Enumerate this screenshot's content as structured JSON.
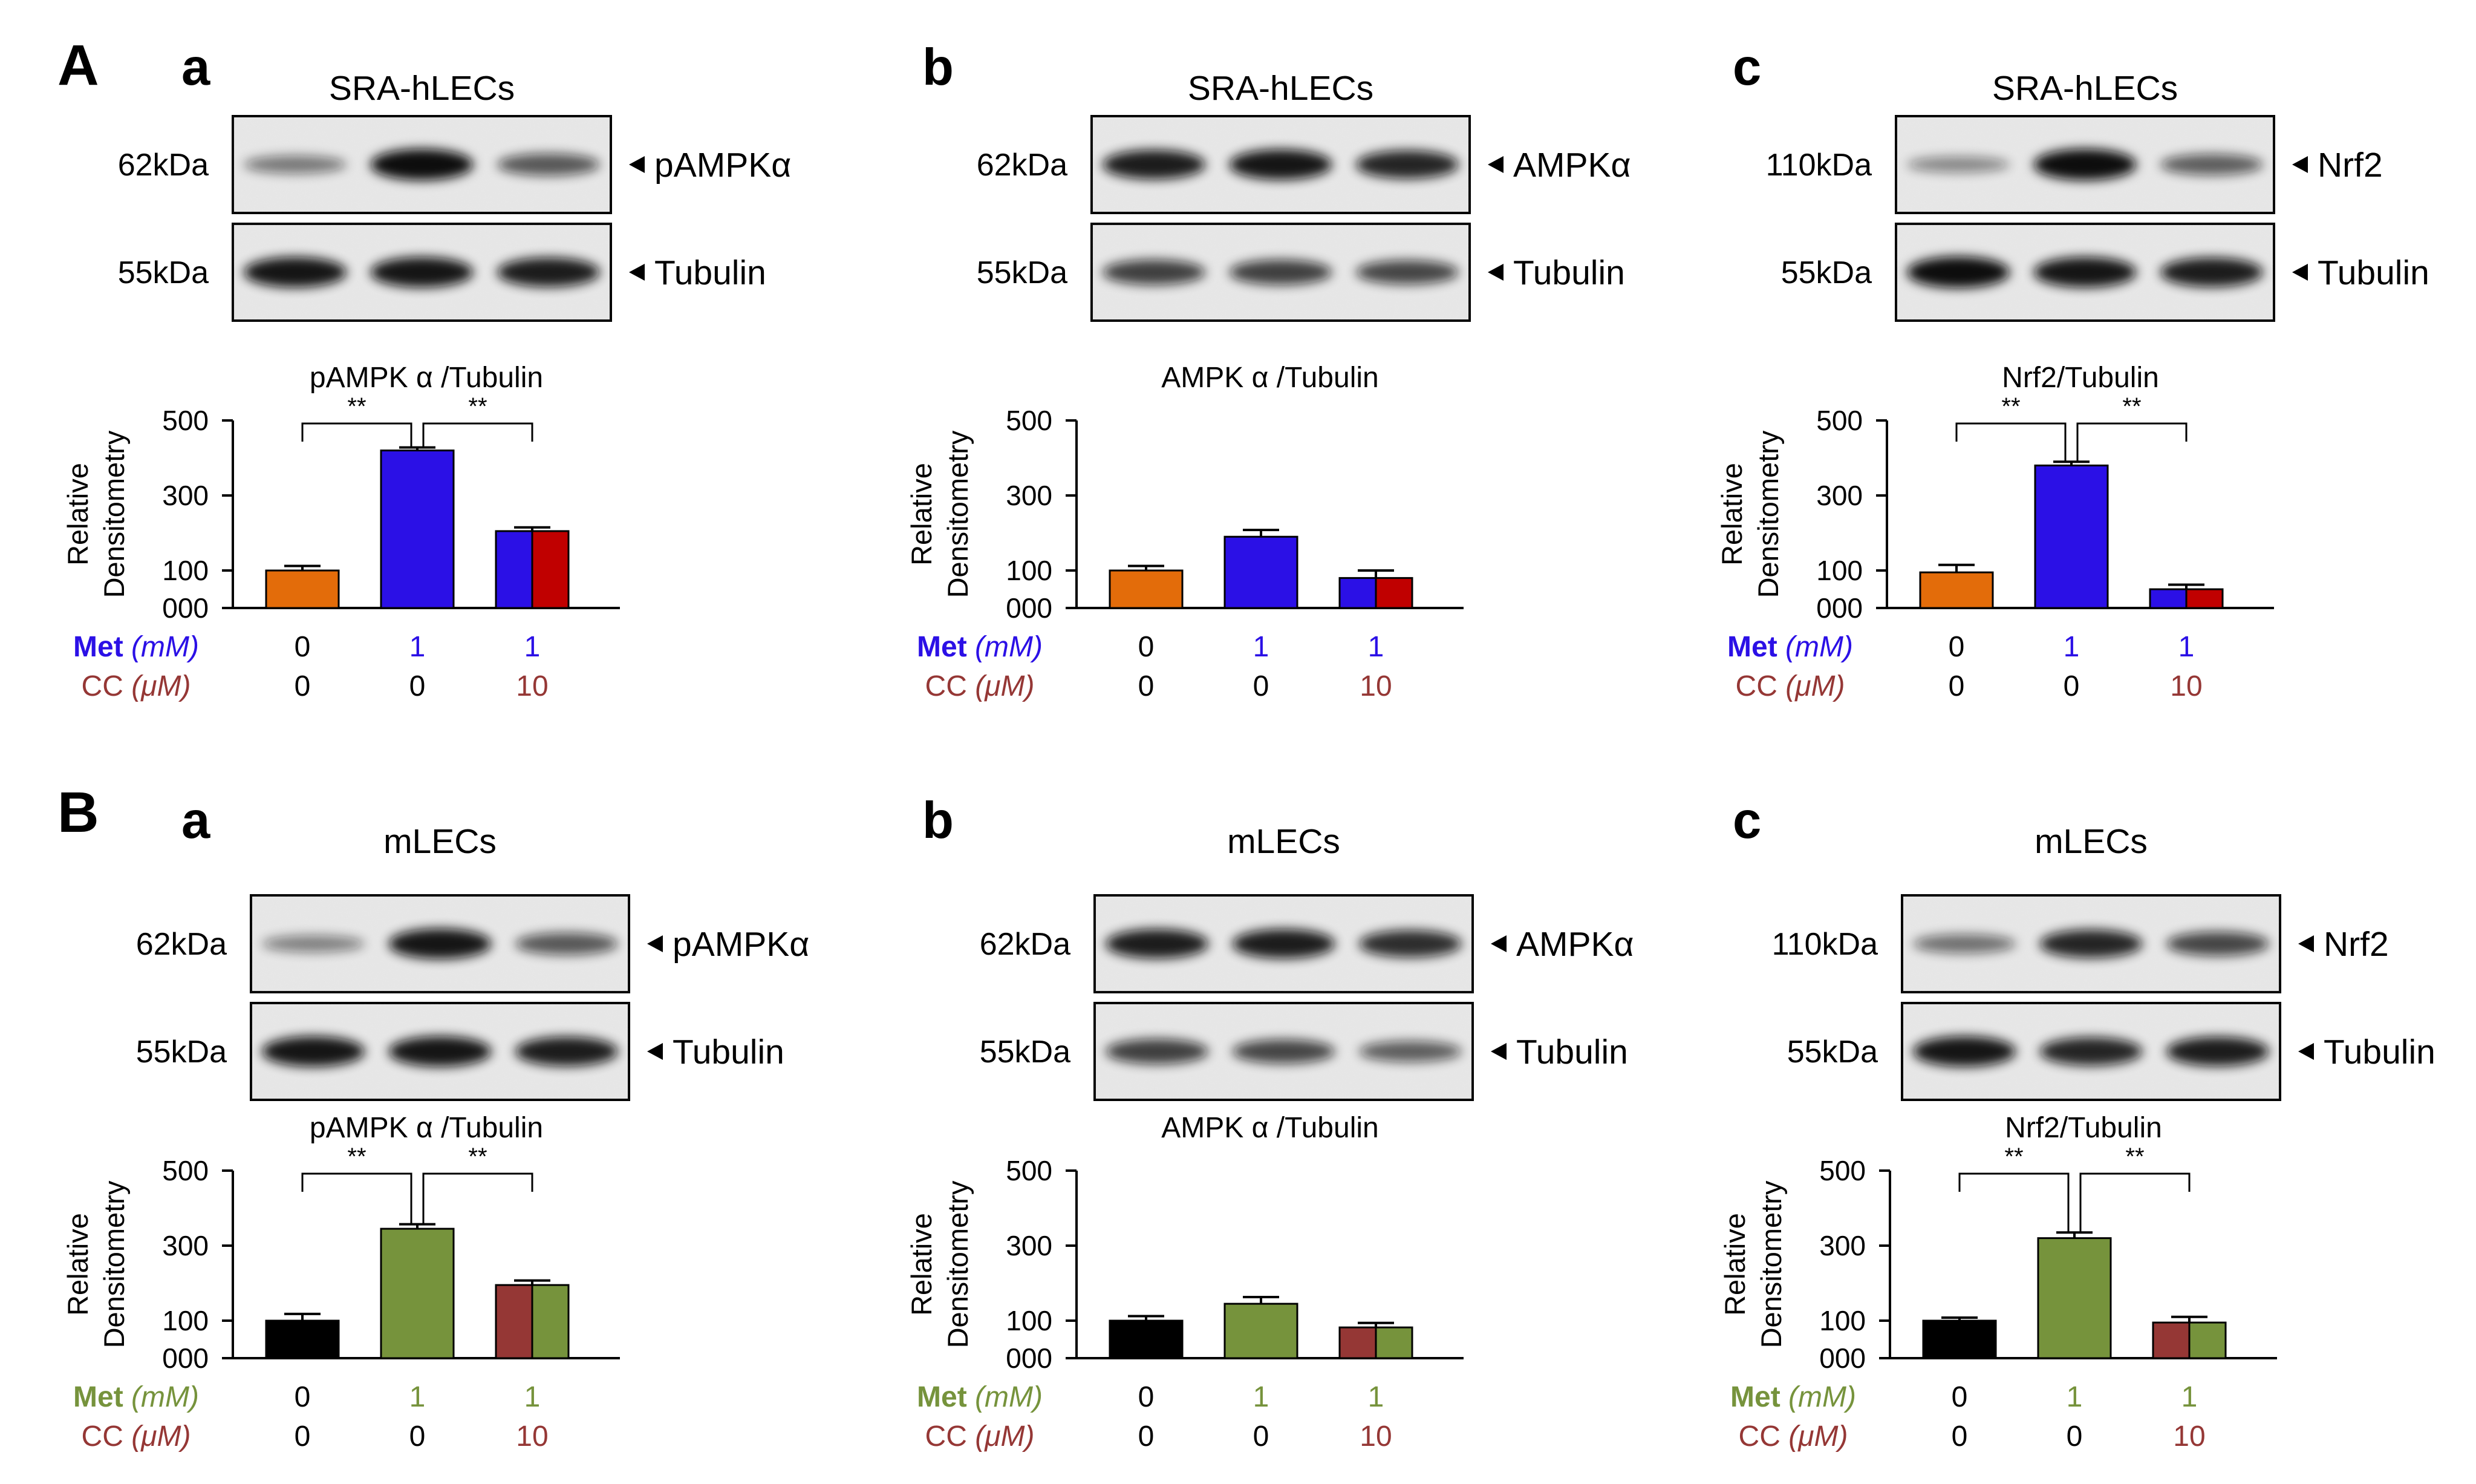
{
  "figure": {
    "panel_labels": [
      "A",
      "B"
    ],
    "sub_labels": [
      "a",
      "b",
      "c"
    ],
    "colors": {
      "orange": "#E36C0A",
      "blue": "#2B10E6",
      "red": "#C00000",
      "black": "#000000",
      "green": "#76933C",
      "cc_text": "#953735",
      "met_label_A": "#2B10E6",
      "met_label_B": "#76933C"
    }
  },
  "panels": [
    {
      "row": "A",
      "sub": "a",
      "cell_line": "SRA-hLECs",
      "blots": [
        {
          "kda": "62kDa",
          "protein": "pAMPKα",
          "bands": [
            0.35,
            1.0,
            0.55
          ]
        },
        {
          "kda": "55kDa",
          "protein": "Tubulin",
          "bands": [
            0.95,
            0.95,
            0.9
          ]
        }
      ],
      "chart_data": {
        "type": "bar",
        "title": "pAMPK α /Tubulin",
        "ylabel": [
          "Relative",
          "Densitometry"
        ],
        "yticks": [
          "500",
          "300",
          "100",
          "000"
        ],
        "ylim": [
          0,
          500
        ],
        "values": [
          100,
          420,
          205
        ],
        "errors": [
          12,
          8,
          10
        ],
        "significance": [
          "**",
          "**"
        ],
        "met_label": "Met",
        "met_unit": "(mM)",
        "cc_label": "CC",
        "cc_unit": "(μM)",
        "met": [
          "0",
          "1",
          "1"
        ],
        "cc": [
          "0",
          "0",
          "10"
        ]
      }
    },
    {
      "row": "A",
      "sub": "b",
      "cell_line": "SRA-hLECs",
      "blots": [
        {
          "kda": "62kDa",
          "protein": "AMPKα",
          "bands": [
            0.9,
            0.95,
            0.85
          ]
        },
        {
          "kda": "55kDa",
          "protein": "Tubulin",
          "bands": [
            0.7,
            0.7,
            0.65
          ]
        }
      ],
      "chart_data": {
        "type": "bar",
        "title": "AMPK α /Tubulin",
        "ylabel": [
          "Relative",
          "Densitometry"
        ],
        "yticks": [
          "500",
          "300",
          "100",
          "000"
        ],
        "ylim": [
          0,
          500
        ],
        "values": [
          100,
          190,
          80
        ],
        "errors": [
          12,
          18,
          20
        ],
        "significance": [],
        "met_label": "Met",
        "met_unit": "(mM)",
        "cc_label": "CC",
        "cc_unit": "(μM)",
        "met": [
          "0",
          "1",
          "1"
        ],
        "cc": [
          "0",
          "0",
          "10"
        ]
      }
    },
    {
      "row": "A",
      "sub": "c",
      "cell_line": "SRA-hLECs",
      "blots": [
        {
          "kda": "110kDa",
          "protein": "Nrf2",
          "bands": [
            0.25,
            1.0,
            0.5
          ]
        },
        {
          "kda": "55kDa",
          "protein": "Tubulin",
          "bands": [
            1.0,
            0.95,
            0.9
          ]
        }
      ],
      "chart_data": {
        "type": "bar",
        "title": "Nrf2/Tubulin",
        "ylabel": [
          "Relative",
          "Densitometry"
        ],
        "yticks": [
          "500",
          "300",
          "100",
          "000"
        ],
        "ylim": [
          0,
          500
        ],
        "values": [
          95,
          380,
          50
        ],
        "errors": [
          20,
          10,
          12
        ],
        "significance": [
          "**",
          "**"
        ],
        "met_label": "Met",
        "met_unit": "(mM)",
        "cc_label": "CC",
        "cc_unit": "(μM)",
        "met": [
          "0",
          "1",
          "1"
        ],
        "cc": [
          "0",
          "0",
          "10"
        ]
      }
    },
    {
      "row": "B",
      "sub": "a",
      "cell_line": "mLECs",
      "blots": [
        {
          "kda": "62kDa",
          "protein": "pAMPKα",
          "bands": [
            0.3,
            0.95,
            0.55
          ]
        },
        {
          "kda": "55kDa",
          "protein": "Tubulin",
          "bands": [
            0.95,
            0.95,
            0.9
          ]
        }
      ],
      "chart_data": {
        "type": "bar",
        "title": "pAMPK α /Tubulin",
        "ylabel": [
          "Relative",
          "Densitometry"
        ],
        "yticks": [
          "500",
          "300",
          "100",
          "000"
        ],
        "ylim": [
          0,
          500
        ],
        "values": [
          100,
          345,
          195
        ],
        "errors": [
          18,
          12,
          12
        ],
        "significance": [
          "**",
          "**"
        ],
        "met_label": "Met",
        "met_unit": "(mM)",
        "cc_label": "CC",
        "cc_unit": "(μM)",
        "met": [
          "0",
          "1",
          "1"
        ],
        "cc": [
          "0",
          "0",
          "10"
        ]
      }
    },
    {
      "row": "B",
      "sub": "b",
      "cell_line": "mLECs",
      "blots": [
        {
          "kda": "62kDa",
          "protein": "AMPKα",
          "bands": [
            0.9,
            0.9,
            0.8
          ]
        },
        {
          "kda": "55kDa",
          "protein": "Tubulin",
          "bands": [
            0.7,
            0.65,
            0.5
          ]
        }
      ],
      "chart_data": {
        "type": "bar",
        "title": "AMPK α /Tubulin",
        "ylabel": [
          "Relative",
          "Densitometry"
        ],
        "yticks": [
          "500",
          "300",
          "100",
          "000"
        ],
        "ylim": [
          0,
          500
        ],
        "values": [
          100,
          145,
          82
        ],
        "errors": [
          12,
          18,
          12
        ],
        "significance": [],
        "met_label": "Met",
        "met_unit": "(mM)",
        "cc_label": "CC",
        "cc_unit": "(μM)",
        "met": [
          "0",
          "1",
          "1"
        ],
        "cc": [
          "0",
          "0",
          "10"
        ]
      }
    },
    {
      "row": "B",
      "sub": "c",
      "cell_line": "mLECs",
      "blots": [
        {
          "kda": "110kDa",
          "protein": "Nrf2",
          "bands": [
            0.4,
            0.85,
            0.65
          ]
        },
        {
          "kda": "55kDa",
          "protein": "Tubulin",
          "bands": [
            0.95,
            0.85,
            0.9
          ]
        }
      ],
      "chart_data": {
        "type": "bar",
        "title": "Nrf2/Tubulin",
        "ylabel": [
          "Relative",
          "Densitometry"
        ],
        "yticks": [
          "500",
          "300",
          "100",
          "000"
        ],
        "ylim": [
          0,
          500
        ],
        "values": [
          100,
          320,
          95
        ],
        "errors": [
          8,
          15,
          15
        ],
        "significance": [
          "**",
          "**"
        ],
        "met_label": "Met",
        "met_unit": "(mM)",
        "cc_label": "CC",
        "cc_unit": "(μM)",
        "met": [
          "0",
          "1",
          "1"
        ],
        "cc": [
          "0",
          "0",
          "10"
        ]
      }
    }
  ]
}
